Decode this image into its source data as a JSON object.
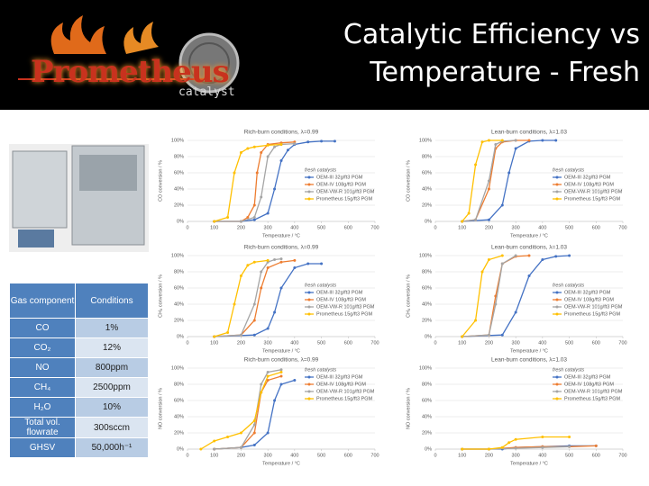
{
  "header": {
    "logo": "Prometheus",
    "logo_sub": "catalyst",
    "title": "Catalytic Efficiency vs Temperature - Fresh"
  },
  "table": {
    "header": [
      "Gas component",
      "Conditions"
    ],
    "rows": [
      [
        "CO",
        "1%"
      ],
      [
        "CO₂",
        "12%"
      ],
      [
        "NO",
        "800ppm"
      ],
      [
        "CH₄",
        "2500ppm"
      ],
      [
        "H₂O",
        "10%"
      ],
      [
        "Total vol. flowrate",
        "300sccm"
      ],
      [
        "GHSV",
        "50,000h⁻¹"
      ]
    ]
  },
  "chart_data": [
    {
      "type": "line",
      "title": "Rich-burn conditions, λ=0.99",
      "xlabel": "Temperature / °C",
      "ylabel": "CO conversion / %",
      "xlim": [
        0,
        700
      ],
      "xticks": [
        0,
        100,
        200,
        300,
        400,
        500,
        600,
        700
      ],
      "ylim": [
        0,
        100
      ],
      "yticks": [
        {
          "value": 0,
          "label": "0%"
        },
        {
          "value": 20,
          "label": "20%"
        },
        {
          "value": 40,
          "label": "40%"
        },
        {
          "value": 60,
          "label": "60%"
        },
        {
          "value": 80,
          "label": "80%"
        },
        {
          "value": 100,
          "label": "100%"
        }
      ],
      "grid": true,
      "legend": "right",
      "legend_title": "fresh catalysts",
      "series": [
        {
          "name": "OEM-III 32g/ft3 PGM",
          "color": "#4472c4",
          "x": [
            100,
            200,
            250,
            300,
            325,
            350,
            375,
            400,
            450,
            500,
            550
          ],
          "values": [
            0,
            0,
            2,
            10,
            40,
            75,
            88,
            95,
            98,
            99,
            99
          ]
        },
        {
          "name": "OEM-IV 108g/ft3 PGM",
          "color": "#ed7d31",
          "x": [
            100,
            200,
            225,
            250,
            260,
            275,
            300,
            350,
            400
          ],
          "values": [
            0,
            0,
            5,
            20,
            60,
            85,
            95,
            97,
            98
          ]
        },
        {
          "name": "OEM-VW-R 101g/ft3 PGM",
          "color": "#a5a5a5",
          "x": [
            100,
            200,
            250,
            275,
            300,
            325,
            350,
            400
          ],
          "values": [
            0,
            0,
            5,
            30,
            80,
            92,
            95,
            96
          ]
        },
        {
          "name": "Prometheus 15g/ft3 PGM",
          "color": "#ffc000",
          "x": [
            100,
            150,
            175,
            200,
            225,
            250,
            300,
            350
          ],
          "values": [
            0,
            5,
            60,
            85,
            90,
            92,
            94,
            95
          ]
        }
      ]
    },
    {
      "type": "line",
      "title": "Lean-burn conditions, λ=1.03",
      "xlabel": "Temperature / °C",
      "ylabel": "CO conversion / %",
      "xlim": [
        0,
        700
      ],
      "xticks": [
        0,
        100,
        200,
        300,
        400,
        500,
        600,
        700
      ],
      "ylim": [
        0,
        100
      ],
      "yticks": [
        {
          "value": 0,
          "label": "0%"
        },
        {
          "value": 20,
          "label": "20%"
        },
        {
          "value": 40,
          "label": "40%"
        },
        {
          "value": 60,
          "label": "60%"
        },
        {
          "value": 80,
          "label": "80%"
        },
        {
          "value": 100,
          "label": "100%"
        }
      ],
      "grid": true,
      "legend": "right",
      "legend_title": "fresh catalysts",
      "series": [
        {
          "name": "OEM-III 32g/ft3 PGM",
          "color": "#4472c4",
          "x": [
            100,
            200,
            250,
            275,
            300,
            350,
            400,
            450
          ],
          "values": [
            0,
            2,
            20,
            60,
            90,
            99,
            100,
            100
          ]
        },
        {
          "name": "OEM-IV 108g/ft3 PGM",
          "color": "#ed7d31",
          "x": [
            100,
            150,
            200,
            225,
            250,
            300,
            350
          ],
          "values": [
            0,
            2,
            40,
            90,
            98,
            100,
            100
          ]
        },
        {
          "name": "OEM-VW-R 101g/ft3 PGM",
          "color": "#a5a5a5",
          "x": [
            100,
            150,
            200,
            225,
            250,
            300
          ],
          "values": [
            0,
            2,
            50,
            95,
            99,
            100
          ]
        },
        {
          "name": "Prometheus 15g/ft3 PGM",
          "color": "#ffc000",
          "x": [
            100,
            125,
            150,
            175,
            200,
            250
          ],
          "values": [
            0,
            10,
            70,
            98,
            100,
            100
          ]
        }
      ]
    },
    {
      "type": "line",
      "title": "Rich-burn conditions, λ=0.99",
      "xlabel": "Temperature / °C",
      "ylabel": "CH₄ conversion / %",
      "xlim": [
        0,
        700
      ],
      "xticks": [
        0,
        100,
        200,
        300,
        400,
        500,
        600,
        700
      ],
      "ylim": [
        0,
        100
      ],
      "yticks": [
        {
          "value": 0,
          "label": "0%"
        },
        {
          "value": 20,
          "label": "20%"
        },
        {
          "value": 40,
          "label": "40%"
        },
        {
          "value": 60,
          "label": "60%"
        },
        {
          "value": 80,
          "label": "80%"
        },
        {
          "value": 100,
          "label": "100%"
        }
      ],
      "grid": true,
      "legend": "right",
      "legend_title": "fresh catalysts",
      "series": [
        {
          "name": "OEM-III 32g/ft3 PGM",
          "color": "#4472c4",
          "x": [
            100,
            250,
            300,
            325,
            350,
            400,
            450,
            500
          ],
          "values": [
            0,
            2,
            10,
            30,
            60,
            85,
            90,
            90
          ]
        },
        {
          "name": "OEM-IV 108g/ft3 PGM",
          "color": "#ed7d31",
          "x": [
            100,
            200,
            250,
            275,
            300,
            350,
            400
          ],
          "values": [
            0,
            2,
            20,
            60,
            85,
            92,
            94
          ]
        },
        {
          "name": "OEM-VW-R 101g/ft3 PGM",
          "color": "#a5a5a5",
          "x": [
            100,
            200,
            250,
            275,
            300,
            325,
            350
          ],
          "values": [
            0,
            2,
            40,
            80,
            92,
            95,
            96
          ]
        },
        {
          "name": "Prometheus 15g/ft3 PGM",
          "color": "#ffc000",
          "x": [
            100,
            150,
            175,
            200,
            225,
            250,
            300
          ],
          "values": [
            0,
            5,
            40,
            75,
            88,
            92,
            94
          ]
        }
      ]
    },
    {
      "type": "line",
      "title": "Lean-burn conditions, λ=1.03",
      "xlabel": "Temperature / °C",
      "ylabel": "CH₄ conversion / %",
      "xlim": [
        0,
        700
      ],
      "xticks": [
        0,
        100,
        200,
        300,
        400,
        500,
        600,
        700
      ],
      "ylim": [
        0,
        100
      ],
      "yticks": [
        {
          "value": 0,
          "label": "0%"
        },
        {
          "value": 20,
          "label": "20%"
        },
        {
          "value": 40,
          "label": "40%"
        },
        {
          "value": 60,
          "label": "60%"
        },
        {
          "value": 80,
          "label": "80%"
        },
        {
          "value": 100,
          "label": "100%"
        }
      ],
      "grid": true,
      "legend": "right",
      "legend_title": "fresh catalysts",
      "series": [
        {
          "name": "OEM-III 32g/ft3 PGM",
          "color": "#4472c4",
          "x": [
            100,
            250,
            300,
            350,
            400,
            450,
            500
          ],
          "values": [
            0,
            2,
            30,
            75,
            95,
            99,
            100
          ]
        },
        {
          "name": "OEM-IV 108g/ft3 PGM",
          "color": "#ed7d31",
          "x": [
            100,
            200,
            225,
            250,
            300,
            350
          ],
          "values": [
            0,
            2,
            50,
            90,
            99,
            100
          ]
        },
        {
          "name": "OEM-VW-R 101g/ft3 PGM",
          "color": "#a5a5a5",
          "x": [
            100,
            200,
            225,
            250,
            300
          ],
          "values": [
            0,
            2,
            40,
            90,
            100
          ]
        },
        {
          "name": "Prometheus 15g/ft3 PGM",
          "color": "#ffc000",
          "x": [
            100,
            150,
            175,
            200,
            250
          ],
          "values": [
            0,
            20,
            80,
            95,
            100
          ]
        }
      ]
    },
    {
      "type": "line",
      "title": "Rich-burn conditions, λ=0.99",
      "xlabel": "Temperature / °C",
      "ylabel": "NO conversion / %",
      "xlim": [
        0,
        700
      ],
      "xticks": [
        0,
        100,
        200,
        300,
        400,
        500,
        600,
        700
      ],
      "ylim": [
        0,
        100
      ],
      "yticks": [
        {
          "value": 0,
          "label": "0%"
        },
        {
          "value": 20,
          "label": "20%"
        },
        {
          "value": 40,
          "label": "40%"
        },
        {
          "value": 60,
          "label": "60%"
        },
        {
          "value": 80,
          "label": "80%"
        },
        {
          "value": 100,
          "label": "100%"
        }
      ],
      "grid": true,
      "legend": "upper right",
      "legend_title": "fresh catalysts",
      "series": [
        {
          "name": "OEM-III 32g/ft3 PGM",
          "color": "#4472c4",
          "x": [
            100,
            200,
            250,
            300,
            325,
            350,
            400
          ],
          "values": [
            0,
            2,
            5,
            20,
            60,
            80,
            85
          ]
        },
        {
          "name": "OEM-IV 108g/ft3 PGM",
          "color": "#ed7d31",
          "x": [
            100,
            200,
            250,
            275,
            300,
            350
          ],
          "values": [
            0,
            2,
            20,
            70,
            85,
            90
          ]
        },
        {
          "name": "OEM-VW-R 101g/ft3 PGM",
          "color": "#a5a5a5",
          "x": [
            100,
            200,
            250,
            275,
            300,
            350
          ],
          "values": [
            0,
            2,
            30,
            80,
            95,
            98
          ]
        },
        {
          "name": "Prometheus 15g/ft3 PGM",
          "color": "#ffc000",
          "x": [
            50,
            100,
            150,
            200,
            250,
            275,
            300,
            350
          ],
          "values": [
            0,
            10,
            15,
            20,
            35,
            70,
            90,
            95
          ]
        }
      ]
    },
    {
      "type": "line",
      "title": "Lean-burn conditions, λ=1.03",
      "xlabel": "Temperature / °C",
      "ylabel": "NO conversion / %",
      "xlim": [
        0,
        700
      ],
      "xticks": [
        0,
        100,
        200,
        300,
        400,
        500,
        600,
        700
      ],
      "ylim": [
        0,
        100
      ],
      "yticks": [
        {
          "value": 0,
          "label": "0%"
        },
        {
          "value": 20,
          "label": "20%"
        },
        {
          "value": 40,
          "label": "40%"
        },
        {
          "value": 60,
          "label": "60%"
        },
        {
          "value": 80,
          "label": "80%"
        },
        {
          "value": 100,
          "label": "100%"
        }
      ],
      "grid": true,
      "legend": "upper right",
      "legend_title": "fresh catalysts",
      "series": [
        {
          "name": "OEM-III 32g/ft3 PGM",
          "color": "#4472c4",
          "x": [
            100,
            200,
            250,
            300,
            400,
            500,
            600
          ],
          "values": [
            0,
            0,
            0,
            2,
            3,
            4,
            4
          ]
        },
        {
          "name": "OEM-IV 108g/ft3 PGM",
          "color": "#ed7d31",
          "x": [
            100,
            200,
            300,
            400,
            500,
            600
          ],
          "values": [
            0,
            0,
            2,
            3,
            3,
            4
          ]
        },
        {
          "name": "OEM-VW-R 101g/ft3 PGM",
          "color": "#a5a5a5",
          "x": [
            100,
            200,
            300,
            400,
            500
          ],
          "values": [
            0,
            0,
            1,
            2,
            3
          ]
        },
        {
          "name": "Prometheus 15g/ft3 PGM",
          "color": "#ffc000",
          "x": [
            100,
            200,
            250,
            275,
            300,
            400,
            500
          ],
          "values": [
            0,
            0,
            2,
            8,
            12,
            15,
            15
          ]
        }
      ]
    }
  ]
}
